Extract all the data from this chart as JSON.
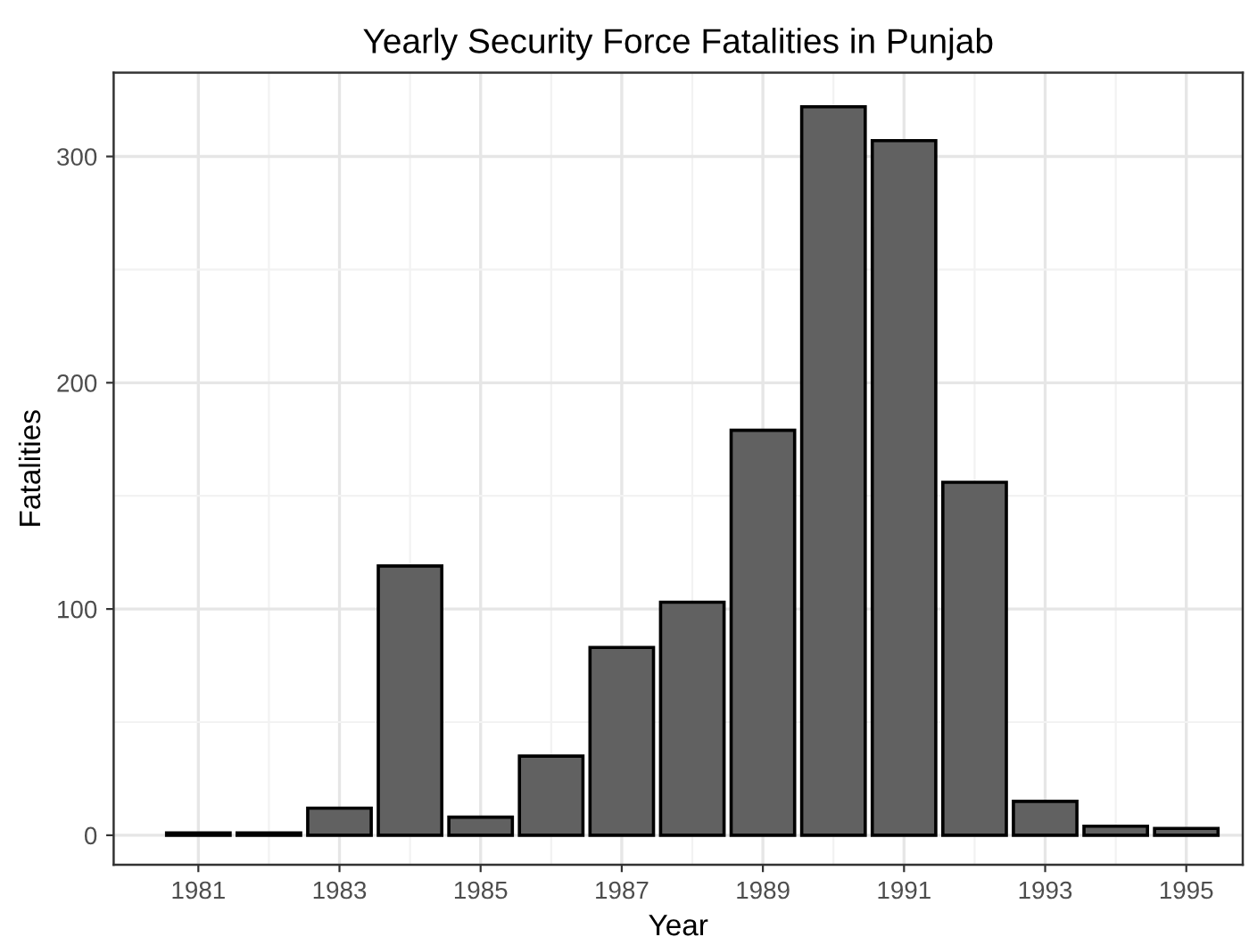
{
  "chart_data": {
    "type": "bar",
    "title": "Yearly Security Force Fatalities in Punjab",
    "xlabel": "Year",
    "ylabel": "Fatalities",
    "x": [
      1981,
      1982,
      1983,
      1984,
      1985,
      1986,
      1987,
      1988,
      1989,
      1990,
      1991,
      1992,
      1993,
      1994,
      1995
    ],
    "values": [
      1,
      1,
      12,
      119,
      8,
      35,
      83,
      103,
      179,
      322,
      307,
      156,
      15,
      4,
      3
    ],
    "color": "#616161",
    "xlim": [
      1979.8,
      1995.8
    ],
    "xticks": [
      1981,
      1983,
      1985,
      1987,
      1989,
      1991,
      1993,
      1995
    ],
    "ylim": [
      -13,
      337
    ],
    "yticks": [
      0,
      100,
      200,
      300
    ],
    "grid": true
  }
}
